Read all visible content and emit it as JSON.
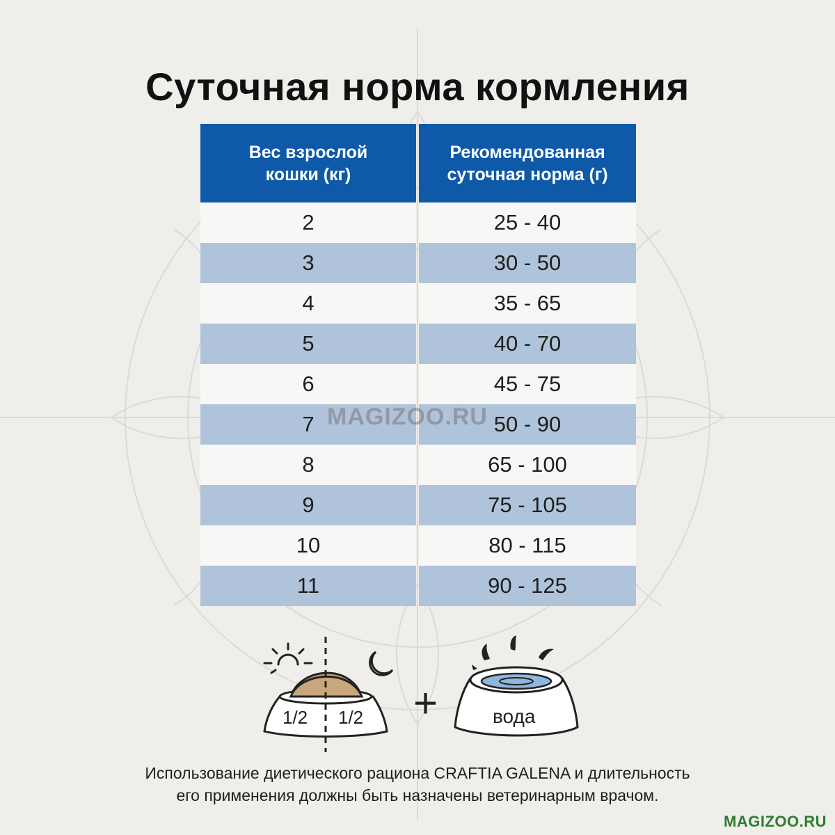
{
  "title": "Суточная норма кормления",
  "table": {
    "headers": [
      "Вес взрослой кошки (кг)",
      "Рекомендованная суточная норма (г)"
    ],
    "rows": [
      {
        "weight": "2",
        "norm": "25 - 40"
      },
      {
        "weight": "3",
        "norm": "30 - 50"
      },
      {
        "weight": "4",
        "norm": "35 - 65"
      },
      {
        "weight": "5",
        "norm": "40 - 70"
      },
      {
        "weight": "6",
        "norm": "45 - 75"
      },
      {
        "weight": "7",
        "norm": "50 - 90"
      },
      {
        "weight": "8",
        "norm": "65 - 100"
      },
      {
        "weight": "9",
        "norm": "75 - 105"
      },
      {
        "weight": "10",
        "norm": "80 - 115"
      },
      {
        "weight": "11",
        "norm": "90 - 125"
      }
    ]
  },
  "watermark": "MAGIZOO.RU",
  "feeding": {
    "half_left": "1/2",
    "half_right": "1/2",
    "plus": "+",
    "water_label": "вода"
  },
  "footnote": {
    "line1": "Использование диетического рациона CRAFTIA GALENA и длительность",
    "line2": "его применения должны быть назначены ветеринарным врачом."
  },
  "brand": "MAGIZOO.RU",
  "colors": {
    "header_bg": "#0f5aa8",
    "row_light": "#f7f7f5",
    "row_dark": "#afc3da",
    "background": "#efeeea",
    "brand": "#2e7d32"
  }
}
